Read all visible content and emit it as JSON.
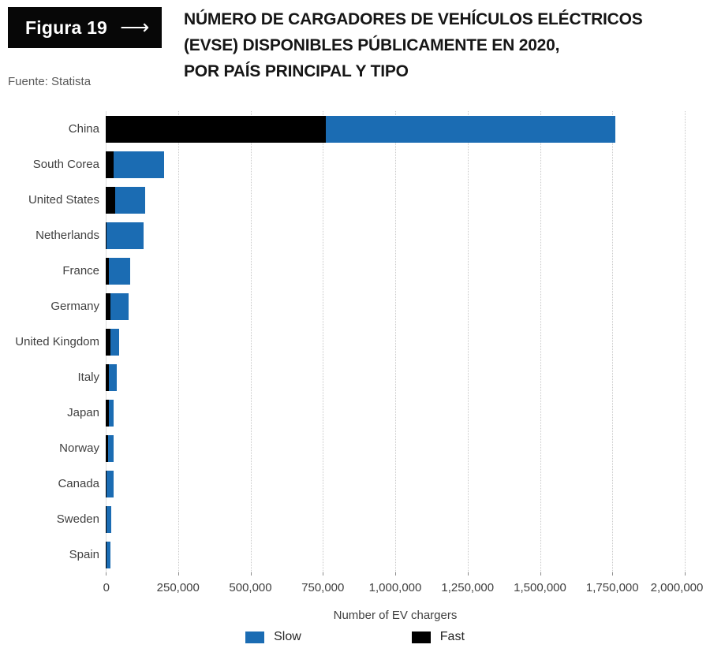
{
  "figure_badge": {
    "label": "Figura 19",
    "arrow": "⟶"
  },
  "source": "Fuente: Statista",
  "title_lines": [
    "NÚMERO DE CARGADORES DE VEHÍCULOS ELÉCTRICOS",
    "(EVSE) DISPONIBLES PÚBLICAMENTE EN 2020,",
    "POR PAÍS PRINCIPAL Y TIPO"
  ],
  "colors": {
    "slow": "#1b6cb3",
    "fast": "#000000",
    "label_text": "#404040",
    "gridline": "#c9c9c9"
  },
  "chart_data": {
    "type": "bar",
    "orientation": "horizontal",
    "stacked": true,
    "title": "Número de cargadores de vehículos eléctricos (EVSE) disponibles públicamente en 2020, por país principal y tipo",
    "categories": [
      "China",
      "South Corea",
      "United States",
      "Netherlands",
      "France",
      "Germany",
      "United Kingdom",
      "Italy",
      "Japan",
      "Norway",
      "Canada",
      "Sweden",
      "Spain"
    ],
    "stack_order": [
      "Fast",
      "Slow"
    ],
    "series": [
      {
        "name": "Fast",
        "color": "#000000",
        "values": [
          760000,
          28000,
          33000,
          4000,
          12000,
          17000,
          17000,
          12000,
          12000,
          9000,
          2000,
          2000,
          2000
        ]
      },
      {
        "name": "Slow",
        "color": "#1b6cb3",
        "values": [
          1000000,
          175000,
          104000,
          128000,
          72000,
          63000,
          30000,
          25000,
          15000,
          18000,
          24000,
          18000,
          15000
        ]
      }
    ],
    "xlabel": "Number of EV chargers",
    "xlim": [
      0,
      2000000
    ],
    "xticks": [
      0,
      250000,
      500000,
      750000,
      1000000,
      1250000,
      1500000,
      1750000,
      2000000
    ],
    "xtick_labels": [
      "0",
      "250,000",
      "500,000",
      "750,000",
      "1,000,000",
      "1,250,000",
      "1,500,000",
      "1,750,000",
      "2,000,000"
    ],
    "grid": "vertical dotted",
    "legend_position": "bottom",
    "legend": [
      {
        "label": "Slow",
        "color": "#1b6cb3"
      },
      {
        "label": "Fast",
        "color": "#000000"
      }
    ]
  }
}
